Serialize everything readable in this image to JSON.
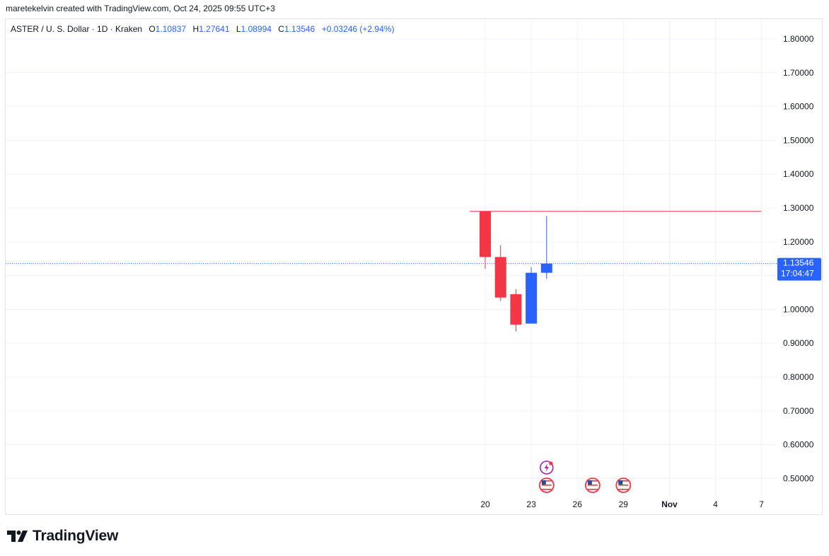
{
  "header": {
    "credit": "maretekelvin created with TradingView.com, Oct 24, 2025 09:55 UTC+3"
  },
  "legend": {
    "symbol": "ASTER / U. S. Dollar · 1D · Kraken",
    "open_label": "O",
    "open": "1.10837",
    "high_label": "H",
    "high": "1.27641",
    "low_label": "L",
    "low": "1.08994",
    "close_label": "C",
    "close": "1.13546",
    "change": "+0.03246 (+2.94%)"
  },
  "price_tag": {
    "price": "1.13546",
    "countdown": "17:04:47"
  },
  "brand": {
    "name": "TradingView"
  },
  "colors": {
    "up": "#2962ff",
    "down": "#f23645",
    "grid": "#f0f3fa",
    "resistance": "#f23645",
    "current_price_line": "#2962ff"
  },
  "chart_data": {
    "type": "candlestick",
    "ylim": [
      0.42,
      1.86
    ],
    "y_ticks": [
      "1.80000",
      "1.70000",
      "1.60000",
      "1.50000",
      "1.40000",
      "1.30000",
      "1.20000",
      "1.10000",
      "1.00000",
      "0.90000",
      "0.80000",
      "0.70000",
      "0.60000",
      "0.50000"
    ],
    "x_ticks": [
      {
        "label": "20",
        "day": 20
      },
      {
        "label": "23",
        "day": 23
      },
      {
        "label": "26",
        "day": 26
      },
      {
        "label": "29",
        "day": 29
      },
      {
        "label": "Nov",
        "day": 32
      },
      {
        "label": "4",
        "day": 35
      },
      {
        "label": "7",
        "day": 38
      }
    ],
    "candles": [
      {
        "date": "Oct 20",
        "day": 20,
        "open": 1.29,
        "high": 1.29,
        "low": 1.12,
        "close": 1.155
      },
      {
        "date": "Oct 21",
        "day": 21,
        "open": 1.155,
        "high": 1.19,
        "low": 1.025,
        "close": 1.035
      },
      {
        "date": "Oct 22",
        "day": 22,
        "open": 1.045,
        "high": 1.06,
        "low": 0.935,
        "close": 0.955
      },
      {
        "date": "Oct 23",
        "day": 23,
        "open": 0.958,
        "high": 1.125,
        "low": 0.958,
        "close": 1.10837
      },
      {
        "date": "Oct 24",
        "day": 24,
        "open": 1.10837,
        "high": 1.27641,
        "low": 1.08994,
        "close": 1.13546
      }
    ],
    "horizontal_lines": [
      {
        "name": "resistance",
        "value": 1.29,
        "from_day": 20,
        "to_day": 38
      },
      {
        "name": "current-price",
        "value": 1.13546
      }
    ],
    "events": [
      {
        "day": 24,
        "type": "earnings-lightning"
      },
      {
        "day": 24,
        "type": "us-economic-event"
      },
      {
        "day": 27,
        "type": "us-economic-event"
      },
      {
        "day": 29,
        "type": "us-economic-event"
      }
    ]
  }
}
